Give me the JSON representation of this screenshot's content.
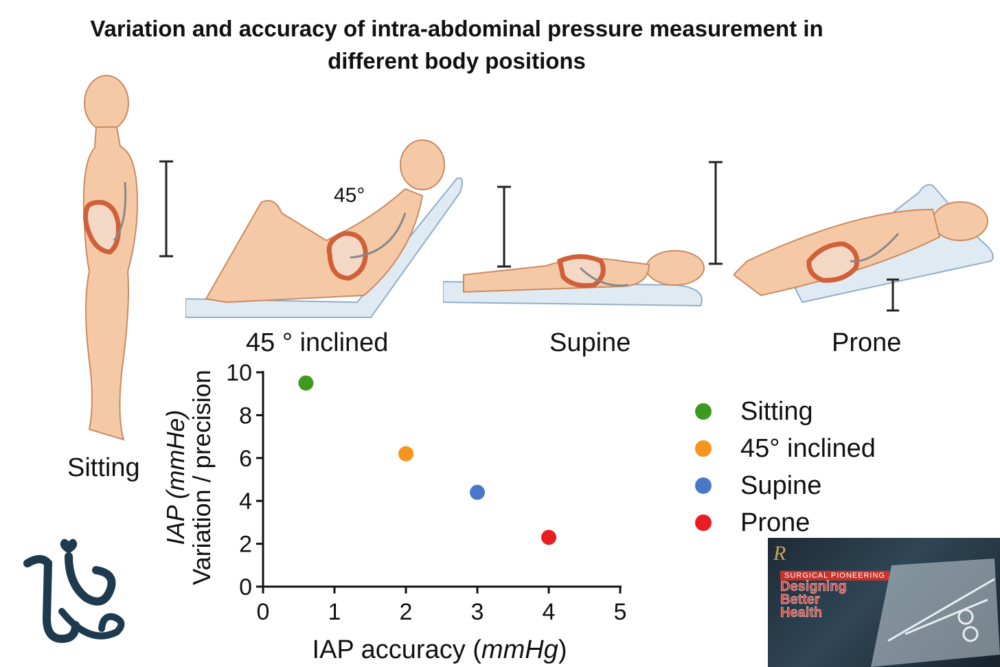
{
  "title": {
    "line1": "Variation and accuracy of intra-abdominal pressure measurement in",
    "line2": "different body positions"
  },
  "positions": {
    "sitting": "Sitting",
    "inclined": "45 ° inclined",
    "supine": "Supine",
    "prone": "Prone",
    "angle_label": "45°"
  },
  "chart_data": {
    "type": "scatter",
    "xlabel_prefix": "IAP accuracy (",
    "xlabel_unit": "mmHg",
    "xlabel_suffix": ")",
    "ylabel_prefix": "Variation / precision",
    "ylabel_unit": "IAP (mmHe)",
    "xlim": [
      0,
      5
    ],
    "ylim": [
      0,
      10
    ],
    "x_tick_values": [
      0,
      1,
      2,
      3,
      4,
      5
    ],
    "x_tick_labels": [
      "0",
      "1",
      "2",
      "3",
      "4",
      "5"
    ],
    "y_tick_values": [
      0,
      2,
      4,
      6,
      8,
      10
    ],
    "y_tick_labels": [
      "0",
      "2",
      "4",
      "6",
      "8",
      "10"
    ],
    "series": [
      {
        "name": "Sitting",
        "x": 0.6,
        "y": 9.5,
        "color": "#3d9a1e"
      },
      {
        "name": "45° inclined",
        "x": 2.0,
        "y": 6.2,
        "color": "#f7941d"
      },
      {
        "name": "Supine",
        "x": 3.0,
        "y": 4.4,
        "color": "#4a78c8"
      },
      {
        "name": "Prone",
        "x": 4.0,
        "y": 2.3,
        "color": "#ea1c24"
      }
    ]
  },
  "legend": {
    "items": [
      {
        "label": "Sitting",
        "color": "#3d9a1e"
      },
      {
        "label": "45° inclined",
        "color": "#f7941d"
      },
      {
        "label": "Supine",
        "color": "#4a78c8"
      },
      {
        "label": "Prone",
        "color": "#ea1c24"
      }
    ]
  },
  "thumbnail": {
    "brand": "R",
    "kicker": "SURGICAL PIONEERING",
    "headline1": "Designing",
    "headline2": "Better",
    "headline3": "Health"
  },
  "colors": {
    "skin": "#f6c9a6",
    "skin_outline": "#c98a62",
    "colon": "#e0774d",
    "bed": "#dfeaf3"
  }
}
